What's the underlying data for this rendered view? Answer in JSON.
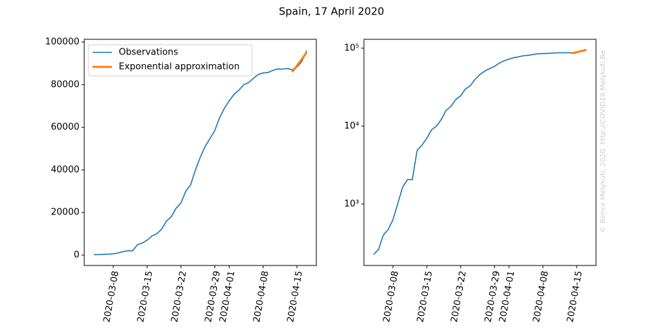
{
  "title": "Spain, 17 April 2020",
  "watermark": "© Bence Mélykúti, 2020. http://COVID19.Melykuti.Be",
  "chart_data": [
    {
      "type": "line",
      "log_scale": false,
      "legend": "upper left",
      "x": [
        "2020-03-04",
        "2020-03-05",
        "2020-03-06",
        "2020-03-07",
        "2020-03-08",
        "2020-03-09",
        "2020-03-10",
        "2020-03-11",
        "2020-03-12",
        "2020-03-13",
        "2020-03-14",
        "2020-03-15",
        "2020-03-16",
        "2020-03-17",
        "2020-03-18",
        "2020-03-19",
        "2020-03-20",
        "2020-03-21",
        "2020-03-22",
        "2020-03-23",
        "2020-03-24",
        "2020-03-25",
        "2020-03-26",
        "2020-03-27",
        "2020-03-28",
        "2020-03-29",
        "2020-03-30",
        "2020-03-31",
        "2020-04-01",
        "2020-04-02",
        "2020-04-03",
        "2020-04-04",
        "2020-04-05",
        "2020-04-06",
        "2020-04-07",
        "2020-04-08",
        "2020-04-09",
        "2020-04-10",
        "2020-04-11",
        "2020-04-12",
        "2020-04-13",
        "2020-04-14",
        "2020-04-15",
        "2020-04-16",
        "2020-04-17"
      ],
      "series": [
        {
          "name": "Observations",
          "color": "#1f77b4",
          "values": [
            226,
            260,
            400,
            470,
            630,
            1020,
            1650,
            2060,
            2060,
            4900,
            5700,
            7000,
            9000,
            10000,
            12200,
            16000,
            18000,
            22000,
            24500,
            30000,
            33000,
            40000,
            46000,
            51000,
            54700,
            58500,
            64500,
            69000,
            72500,
            75500,
            77500,
            80000,
            81000,
            83000,
            84800,
            85500,
            85700,
            86700,
            87400,
            87300,
            87600,
            87000,
            88200,
            90900,
            96000
          ]
        },
        {
          "name": "Exponential approximation",
          "color": "#ff7f0e",
          "values": [
            null,
            null,
            null,
            null,
            null,
            null,
            null,
            null,
            null,
            null,
            null,
            null,
            null,
            null,
            null,
            null,
            null,
            null,
            null,
            null,
            null,
            null,
            null,
            null,
            null,
            null,
            null,
            null,
            null,
            null,
            null,
            null,
            null,
            null,
            null,
            null,
            null,
            null,
            null,
            null,
            null,
            86000,
            88900,
            92000,
            95200
          ]
        }
      ],
      "xlim": [
        "2020-03-02",
        "2020-04-19"
      ],
      "xticks": [
        "2020-03-08",
        "2020-03-15",
        "2020-03-22",
        "2020-03-29",
        "2020-04-01",
        "2020-04-08",
        "2020-04-15"
      ],
      "ylim": [
        -4850,
        101300
      ],
      "yticks": [
        0,
        20000,
        40000,
        60000,
        80000,
        100000
      ]
    },
    {
      "type": "line",
      "log_scale": true,
      "x": [
        "2020-03-04",
        "2020-03-05",
        "2020-03-06",
        "2020-03-07",
        "2020-03-08",
        "2020-03-09",
        "2020-03-10",
        "2020-03-11",
        "2020-03-12",
        "2020-03-13",
        "2020-03-14",
        "2020-03-15",
        "2020-03-16",
        "2020-03-17",
        "2020-03-18",
        "2020-03-19",
        "2020-03-20",
        "2020-03-21",
        "2020-03-22",
        "2020-03-23",
        "2020-03-24",
        "2020-03-25",
        "2020-03-26",
        "2020-03-27",
        "2020-03-28",
        "2020-03-29",
        "2020-03-30",
        "2020-03-31",
        "2020-04-01",
        "2020-04-02",
        "2020-04-03",
        "2020-04-04",
        "2020-04-05",
        "2020-04-06",
        "2020-04-07",
        "2020-04-08",
        "2020-04-09",
        "2020-04-10",
        "2020-04-11",
        "2020-04-12",
        "2020-04-13",
        "2020-04-14",
        "2020-04-15",
        "2020-04-16",
        "2020-04-17"
      ],
      "series": [
        {
          "color": "#1f77b4",
          "values": [
            226,
            260,
            400,
            470,
            630,
            1020,
            1650,
            2060,
            2060,
            4900,
            5700,
            7000,
            9000,
            10000,
            12200,
            16000,
            18000,
            22000,
            24500,
            30000,
            33000,
            40000,
            46000,
            51000,
            54700,
            58500,
            64500,
            69000,
            72500,
            75500,
            77500,
            80000,
            81000,
            83000,
            84800,
            85500,
            85700,
            86700,
            87400,
            87300,
            87600,
            87000,
            88200,
            90900,
            96000
          ]
        },
        {
          "color": "#ff7f0e",
          "values": [
            null,
            null,
            null,
            null,
            null,
            null,
            null,
            null,
            null,
            null,
            null,
            null,
            null,
            null,
            null,
            null,
            null,
            null,
            null,
            null,
            null,
            null,
            null,
            null,
            null,
            null,
            null,
            null,
            null,
            null,
            null,
            null,
            null,
            null,
            null,
            null,
            null,
            null,
            null,
            null,
            null,
            86000,
            88900,
            92000,
            95200
          ]
        }
      ],
      "xlim": [
        "2020-03-02",
        "2020-04-19"
      ],
      "xticks": [
        "2020-03-08",
        "2020-03-15",
        "2020-03-22",
        "2020-03-29",
        "2020-04-01",
        "2020-04-08",
        "2020-04-15"
      ],
      "ylim": [
        163,
        130000
      ],
      "yticks": [
        {
          "value": 1000,
          "label": "10³"
        },
        {
          "value": 10000,
          "label": "10⁴"
        },
        {
          "value": 100000,
          "label": "10⁵"
        }
      ]
    }
  ]
}
